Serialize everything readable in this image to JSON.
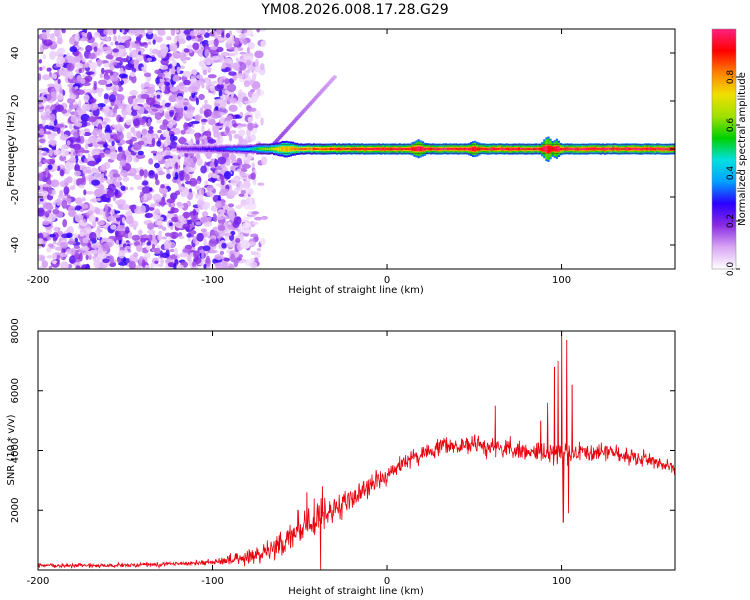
{
  "title": "YM08.2026.008.17.28.G29",
  "chart_data": [
    {
      "type": "heatmap",
      "xlabel": "Height of straight line (km)",
      "ylabel": "Frequency (Hz)",
      "xlim": [
        -200,
        165
      ],
      "ylim": [
        -50,
        50
      ],
      "x_ticks": [
        {
          "value": -200,
          "label": "-200"
        },
        {
          "value": -100,
          "label": "-100"
        },
        {
          "value": 0,
          "label": "0"
        },
        {
          "value": 100,
          "label": "100"
        }
      ],
      "y_ticks": [
        {
          "value": -40,
          "label": "-40"
        },
        {
          "value": -20,
          "label": "-20"
        },
        {
          "value": 0,
          "label": "0"
        },
        {
          "value": 20,
          "label": "20"
        },
        {
          "value": 40,
          "label": "40"
        }
      ],
      "colorbar": {
        "label": "Normalized spectral amplitude",
        "range": [
          0,
          1
        ],
        "ticks": [
          {
            "value": 0.0,
            "label": "0.0"
          },
          {
            "value": 0.2,
            "label": "0.2"
          },
          {
            "value": 0.4,
            "label": "0.4"
          },
          {
            "value": 0.6,
            "label": "0.6"
          },
          {
            "value": 0.8,
            "label": "0.8"
          }
        ],
        "colors": [
          "#ffffff",
          "#d9a6f5",
          "#8a2be2",
          "#2a00ff",
          "#00a0ff",
          "#00e0e0",
          "#00d000",
          "#a0e000",
          "#f0e000",
          "#ff8000",
          "#ff0000",
          "#ff2080"
        ]
      },
      "noise_region": {
        "x_start": -200,
        "x_end": -70,
        "density_end": -80
      },
      "ridge": {
        "frequency": 0,
        "x_start": -120,
        "x_end": 165,
        "profile": [
          {
            "x": -120,
            "amp": 0.2
          },
          {
            "x": -100,
            "amp": 0.28
          },
          {
            "x": -80,
            "amp": 0.45
          },
          {
            "x": -70,
            "amp": 0.65
          },
          {
            "x": -60,
            "amp": 0.8
          },
          {
            "x": -40,
            "amp": 0.9
          },
          {
            "x": -20,
            "amp": 0.95
          },
          {
            "x": 0,
            "amp": 0.97
          },
          {
            "x": 165,
            "amp": 1.0
          }
        ],
        "disturbances": [
          {
            "x": -58,
            "width": 8,
            "height": 3
          },
          {
            "x": 18,
            "width": 5,
            "height": 4
          },
          {
            "x": 50,
            "width": 4,
            "height": 3
          },
          {
            "x": 92,
            "width": 4,
            "height": 8
          },
          {
            "x": 97,
            "width": 3,
            "height": 5
          }
        ],
        "branch": {
          "x_start": -65,
          "y_start": 2,
          "x_end": -30,
          "y_end": 30
        }
      }
    },
    {
      "type": "line",
      "xlabel": "Height of straight line (km)",
      "ylabel": "SNR (10 * v/v)",
      "xlim": [
        -200,
        165
      ],
      "ylim": [
        0,
        8000
      ],
      "color": "#e8000b",
      "x_ticks": [
        {
          "value": -200,
          "label": "-200"
        },
        {
          "value": -100,
          "label": "-100"
        },
        {
          "value": 0,
          "label": "0"
        },
        {
          "value": 100,
          "label": "100"
        }
      ],
      "y_ticks": [
        {
          "value": 2000,
          "label": "2000"
        },
        {
          "value": 4000,
          "label": "4000"
        },
        {
          "value": 6000,
          "label": "6000"
        },
        {
          "value": 8000,
          "label": "8000"
        }
      ],
      "trend": [
        {
          "x": -200,
          "y": 150
        },
        {
          "x": -150,
          "y": 150
        },
        {
          "x": -100,
          "y": 250
        },
        {
          "x": -80,
          "y": 400
        },
        {
          "x": -70,
          "y": 600
        },
        {
          "x": -60,
          "y": 900
        },
        {
          "x": -50,
          "y": 1300
        },
        {
          "x": -40,
          "y": 1700
        },
        {
          "x": -30,
          "y": 2000
        },
        {
          "x": -20,
          "y": 2400
        },
        {
          "x": -10,
          "y": 2800
        },
        {
          "x": 0,
          "y": 3200
        },
        {
          "x": 10,
          "y": 3600
        },
        {
          "x": 20,
          "y": 3900
        },
        {
          "x": 30,
          "y": 4100
        },
        {
          "x": 40,
          "y": 4150
        },
        {
          "x": 60,
          "y": 4150
        },
        {
          "x": 70,
          "y": 4050
        },
        {
          "x": 80,
          "y": 4000
        },
        {
          "x": 90,
          "y": 3900
        },
        {
          "x": 100,
          "y": 3950
        },
        {
          "x": 110,
          "y": 4000
        },
        {
          "x": 130,
          "y": 3900
        },
        {
          "x": 150,
          "y": 3700
        },
        {
          "x": 165,
          "y": 3400
        }
      ],
      "noise": [
        {
          "x": -200,
          "amp": 80
        },
        {
          "x": -100,
          "amp": 100
        },
        {
          "x": -60,
          "amp": 500
        },
        {
          "x": -45,
          "amp": 800
        },
        {
          "x": -30,
          "amp": 500
        },
        {
          "x": 0,
          "amp": 400
        },
        {
          "x": 40,
          "amp": 350
        },
        {
          "x": 100,
          "amp": 500
        },
        {
          "x": 165,
          "amp": 300
        }
      ],
      "spikes": [
        {
          "x": -51,
          "y": 2000
        },
        {
          "x": -46,
          "y": 2600
        },
        {
          "x": -37,
          "y": 2800
        },
        {
          "x": -38,
          "y": 0
        },
        {
          "x": 62,
          "y": 5500
        },
        {
          "x": 88,
          "y": 5000
        },
        {
          "x": 92,
          "y": 5600
        },
        {
          "x": 96,
          "y": 6800
        },
        {
          "x": 98,
          "y": 7000
        },
        {
          "x": 100,
          "y": 8000
        },
        {
          "x": 101,
          "y": 1600
        },
        {
          "x": 103,
          "y": 7700
        },
        {
          "x": 104,
          "y": 1900
        },
        {
          "x": 106,
          "y": 6200
        }
      ]
    }
  ]
}
